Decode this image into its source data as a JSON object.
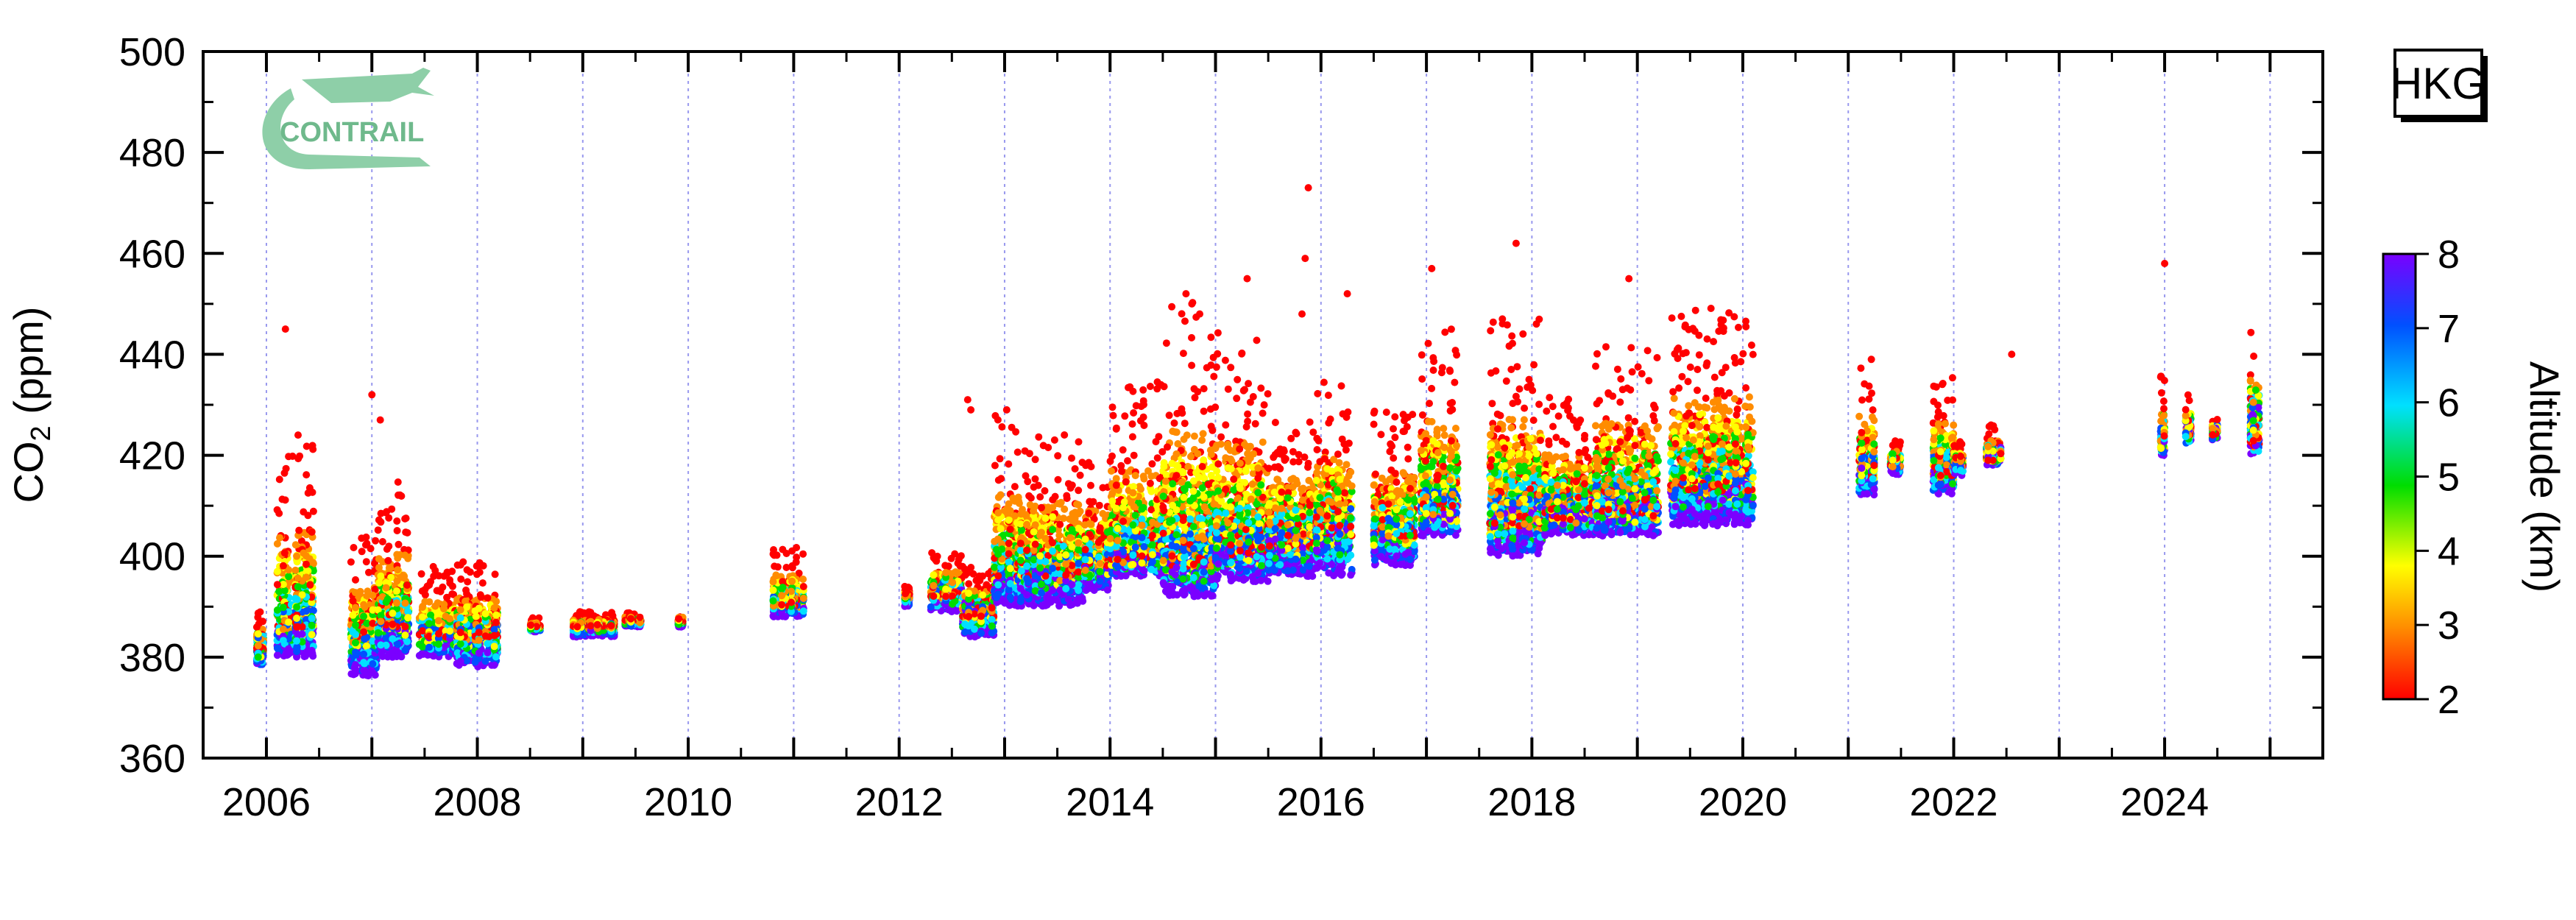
{
  "chart_data": {
    "type": "scatter",
    "ylabel": "CO₂ (ppm)",
    "ylabel_parts": {
      "base": "CO",
      "sub": "2",
      "unit": " (ppm)"
    },
    "xlim": [
      2005.4,
      2025.5
    ],
    "ylim": [
      360,
      500
    ],
    "x_ticks": [
      "2006",
      "2008",
      "2010",
      "2012",
      "2014",
      "2016",
      "2018",
      "2020",
      "2022",
      "2024"
    ],
    "y_ticks": [
      "360",
      "380",
      "400",
      "420",
      "440",
      "460",
      "480",
      "500"
    ],
    "station": "HKG",
    "logo_text": "CONTRAIL",
    "colorbar": {
      "label": "Altitude (km)",
      "min": 2,
      "max": 8,
      "ticks": [
        "2",
        "3",
        "4",
        "5",
        "6",
        "7",
        "8"
      ],
      "colors": [
        "#ff0000",
        "#ff8c00",
        "#ffff00",
        "#00dd00",
        "#00e0ff",
        "#0050ff",
        "#7a00ff"
      ]
    },
    "gridlines": "dotted vertical at year boundaries",
    "colors": {
      "grid": "#9999ee",
      "logo": "#8ecfa8",
      "dot_marker": "#ff0000"
    },
    "clusters": [
      {
        "x": [
          2005.9,
          2006.0
        ],
        "upper_base": 381,
        "upper_top": 389,
        "lower_base": 378,
        "lower_top": 388
      },
      {
        "x": [
          2006.1,
          2006.45
        ],
        "upper_base": 386,
        "upper_top": 425,
        "lower_base": 380,
        "lower_top": 390
      },
      {
        "x": [
          2006.8,
          2007.05
        ],
        "upper_base": 384,
        "upper_top": 405,
        "lower_base": 376,
        "lower_top": 386
      },
      {
        "x": [
          2007.05,
          2007.35
        ],
        "upper_base": 386,
        "upper_top": 415,
        "lower_base": 380,
        "lower_top": 390
      },
      {
        "x": [
          2007.45,
          2007.8
        ],
        "upper_base": 384,
        "upper_top": 398,
        "lower_base": 380,
        "lower_top": 388
      },
      {
        "x": [
          2007.8,
          2008.2
        ],
        "upper_base": 384,
        "upper_top": 399,
        "lower_base": 378,
        "lower_top": 390
      },
      {
        "x": [
          2008.5,
          2008.6
        ],
        "upper_base": 386,
        "upper_top": 388,
        "lower_base": 385,
        "lower_top": 387
      },
      {
        "x": [
          2008.9,
          2009.3
        ],
        "upper_base": 386,
        "upper_top": 389,
        "lower_base": 384,
        "lower_top": 388
      },
      {
        "x": [
          2009.4,
          2009.55
        ],
        "upper_base": 387,
        "upper_top": 389,
        "lower_base": 386,
        "lower_top": 388
      },
      {
        "x": [
          2009.9,
          2009.95
        ],
        "upper_base": 387,
        "upper_top": 388,
        "lower_base": 386,
        "lower_top": 388
      },
      {
        "x": [
          2010.8,
          2011.1
        ],
        "upper_base": 390,
        "upper_top": 402,
        "lower_base": 388,
        "lower_top": 394
      },
      {
        "x": [
          2012.05,
          2012.1
        ],
        "upper_base": 392,
        "upper_top": 394,
        "lower_base": 390,
        "lower_top": 394
      },
      {
        "x": [
          2012.3,
          2012.6
        ],
        "upper_base": 392,
        "upper_top": 401,
        "lower_base": 389,
        "lower_top": 398
      },
      {
        "x": [
          2012.6,
          2012.9
        ],
        "upper_base": 388,
        "upper_top": 398,
        "lower_base": 384,
        "lower_top": 396
      },
      {
        "x": [
          2012.9,
          2013.15
        ],
        "upper_base": 396,
        "upper_top": 429,
        "lower_base": 390,
        "lower_top": 400
      },
      {
        "x": [
          2013.15,
          2013.75
        ],
        "upper_base": 396,
        "upper_top": 425,
        "lower_base": 390,
        "lower_top": 402
      },
      {
        "x": [
          2013.75,
          2014.0
        ],
        "upper_base": 398,
        "upper_top": 420,
        "lower_base": 393,
        "lower_top": 402
      },
      {
        "x": [
          2014.0,
          2014.5
        ],
        "upper_base": 399,
        "upper_top": 435,
        "lower_base": 396,
        "lower_top": 404
      },
      {
        "x": [
          2014.5,
          2015.0
        ],
        "upper_base": 398,
        "upper_top": 452,
        "lower_base": 392,
        "lower_top": 404
      },
      {
        "x": [
          2015.0,
          2015.5
        ],
        "upper_base": 400,
        "upper_top": 445,
        "lower_base": 395,
        "lower_top": 406
      },
      {
        "x": [
          2015.5,
          2015.95
        ],
        "upper_base": 402,
        "upper_top": 428,
        "lower_base": 396,
        "lower_top": 412
      },
      {
        "x": [
          2015.95,
          2016.3
        ],
        "upper_base": 404,
        "upper_top": 435,
        "lower_base": 396,
        "lower_top": 414
      },
      {
        "x": [
          2016.5,
          2016.9
        ],
        "upper_base": 404,
        "upper_top": 429,
        "lower_base": 398,
        "lower_top": 410
      },
      {
        "x": [
          2016.95,
          2017.3
        ],
        "upper_base": 408,
        "upper_top": 445,
        "lower_base": 404,
        "lower_top": 414
      },
      {
        "x": [
          2017.6,
          2018.1
        ],
        "upper_base": 406,
        "upper_top": 447,
        "lower_base": 400,
        "lower_top": 416
      },
      {
        "x": [
          2018.1,
          2018.6
        ],
        "upper_base": 407,
        "upper_top": 432,
        "lower_base": 404,
        "lower_top": 416
      },
      {
        "x": [
          2018.6,
          2019.2
        ],
        "upper_base": 408,
        "upper_top": 444,
        "lower_base": 404,
        "lower_top": 416
      },
      {
        "x": [
          2019.3,
          2020.1
        ],
        "upper_base": 413,
        "upper_top": 450,
        "lower_base": 406,
        "lower_top": 420
      },
      {
        "x": [
          2021.1,
          2021.25
        ],
        "upper_base": 416,
        "upper_top": 439,
        "lower_base": 412,
        "lower_top": 422
      },
      {
        "x": [
          2021.4,
          2021.5
        ],
        "upper_base": 418,
        "upper_top": 423,
        "lower_base": 416,
        "lower_top": 422
      },
      {
        "x": [
          2021.8,
          2022.0
        ],
        "upper_base": 416,
        "upper_top": 436,
        "lower_base": 412,
        "lower_top": 424
      },
      {
        "x": [
          2022.0,
          2022.1
        ],
        "upper_base": 418,
        "upper_top": 423,
        "lower_base": 416,
        "lower_top": 422
      },
      {
        "x": [
          2022.3,
          2022.45
        ],
        "upper_base": 419,
        "upper_top": 426,
        "lower_base": 418,
        "lower_top": 424
      },
      {
        "x": [
          2023.95,
          2024.0
        ],
        "upper_base": 422,
        "upper_top": 438,
        "lower_base": 420,
        "lower_top": 428
      },
      {
        "x": [
          2024.2,
          2024.25
        ],
        "upper_base": 424,
        "upper_top": 433,
        "lower_base": 422,
        "lower_top": 430
      },
      {
        "x": [
          2024.45,
          2024.5
        ],
        "upper_base": 424,
        "upper_top": 428,
        "lower_base": 423,
        "lower_top": 428
      },
      {
        "x": [
          2024.8,
          2024.9
        ],
        "upper_base": 422,
        "upper_top": 445,
        "lower_base": 420,
        "lower_top": 438
      }
    ],
    "outliers": [
      {
        "x": 2006.18,
        "y": 445
      },
      {
        "x": 2006.3,
        "y": 424
      },
      {
        "x": 2007.0,
        "y": 432
      },
      {
        "x": 2007.08,
        "y": 427
      },
      {
        "x": 2012.65,
        "y": 431
      },
      {
        "x": 2012.68,
        "y": 429
      },
      {
        "x": 2013.02,
        "y": 429
      },
      {
        "x": 2014.72,
        "y": 452
      },
      {
        "x": 2014.85,
        "y": 448
      },
      {
        "x": 2015.3,
        "y": 455
      },
      {
        "x": 2015.88,
        "y": 473
      },
      {
        "x": 2015.85,
        "y": 459
      },
      {
        "x": 2015.82,
        "y": 448
      },
      {
        "x": 2016.25,
        "y": 452
      },
      {
        "x": 2017.05,
        "y": 457
      },
      {
        "x": 2017.85,
        "y": 462
      },
      {
        "x": 2017.72,
        "y": 447
      },
      {
        "x": 2018.92,
        "y": 455
      },
      {
        "x": 2022.55,
        "y": 440
      },
      {
        "x": 2024.0,
        "y": 458
      }
    ]
  }
}
